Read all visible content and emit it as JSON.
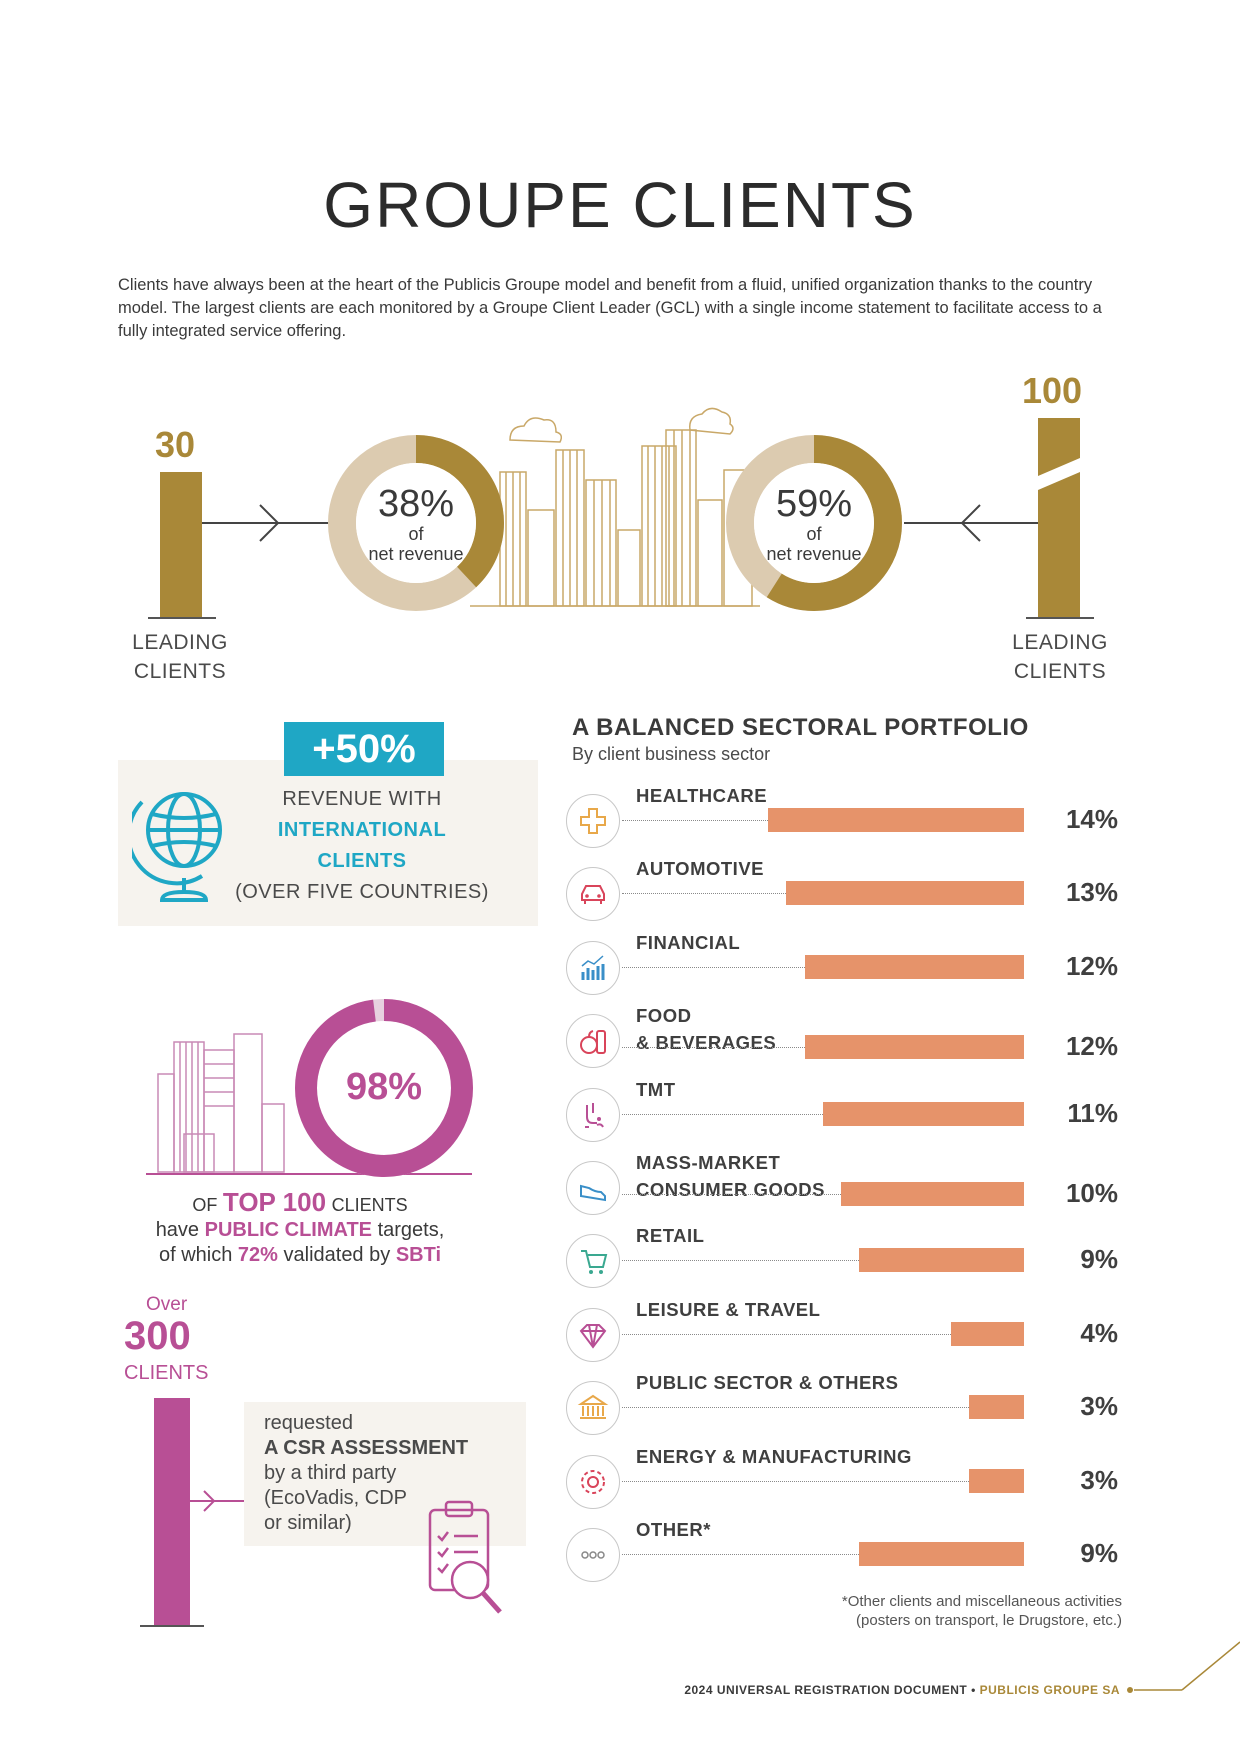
{
  "page": {
    "title": "GROUPE CLIENTS",
    "intro": "Clients have always been at the heart of the Publicis Groupe model and benefit from a fluid, unified organization thanks to the country model. The largest clients are each monitored by a Groupe Client Leader (GCL) with a single income statement to facilitate access to a fully integrated service offering."
  },
  "leading": {
    "left": {
      "count": "30",
      "label_line1": "LEADING",
      "label_line2": "CLIENTS",
      "pct": "38%",
      "of": "of",
      "sub": "net revenue",
      "share": 0.38
    },
    "right": {
      "count": "100",
      "label_line1": "LEADING",
      "label_line2": "CLIENTS",
      "pct": "59%",
      "of": "of",
      "sub": "net revenue",
      "share": 0.59
    }
  },
  "international": {
    "badge": "+50%",
    "line1": "REVENUE WITH",
    "line2": "INTERNATIONAL",
    "line3": "CLIENTS",
    "line4": "(OVER FIVE COUNTRIES)"
  },
  "climate": {
    "pct": "98%",
    "share": 0.98,
    "of": "OF",
    "top100": "TOP 100",
    "clients": "CLIENTS",
    "have": "have",
    "public_climate": "PUBLIC CLIMATE",
    "targets": "targets,",
    "of_which": "of which",
    "validated_pct": "72%",
    "validated_by": "validated by",
    "sbti": "SBTi"
  },
  "csr": {
    "over": "Over",
    "count": "300",
    "clients": "CLIENTS",
    "line1": "requested",
    "line2": "A CSR ASSESSMENT",
    "line3": "by a third party",
    "line4": "(EcoVadis, CDP",
    "line5": "or similar)"
  },
  "chart_data": {
    "type": "bar",
    "title": "A BALANCED SECTORAL PORTFOLIO",
    "subtitle": "By client business sector",
    "categories": [
      "HEALTHCARE",
      "AUTOMOTIVE",
      "FINANCIAL",
      "FOOD & BEVERAGES",
      "TMT",
      "MASS-MARKET CONSUMER GOODS",
      "RETAIL",
      "LEISURE & TRAVEL",
      "PUBLIC SECTOR & OTHERS",
      "ENERGY & MANUFACTURING",
      "OTHER*"
    ],
    "values": [
      14,
      13,
      12,
      12,
      11,
      10,
      9,
      4,
      3,
      3,
      9
    ],
    "labels": [
      "14%",
      "13%",
      "12%",
      "12%",
      "11%",
      "10%",
      "9%",
      "4%",
      "3%",
      "3%",
      "9%"
    ],
    "name_lines": [
      [
        "HEALTHCARE"
      ],
      [
        "AUTOMOTIVE"
      ],
      [
        "FINANCIAL"
      ],
      [
        "FOOD",
        "& BEVERAGES"
      ],
      [
        "TMT"
      ],
      [
        "MASS-MARKET",
        "CONSUMER GOODS"
      ],
      [
        "RETAIL"
      ],
      [
        "LEISURE & TRAVEL"
      ],
      [
        "PUBLIC SECTOR & OTHERS"
      ],
      [
        "ENERGY & MANUFACTURING"
      ],
      [
        "OTHER*"
      ]
    ],
    "icons": [
      "healthcare-icon",
      "car-icon",
      "chart-icon",
      "food-icon",
      "tmt-icon",
      "shoe-icon",
      "cart-icon",
      "diamond-icon",
      "building-icon",
      "gear-icon",
      "more-icon"
    ],
    "icon_colors": [
      "#e8a84a",
      "#d9445a",
      "#3a8fc8",
      "#d9445a",
      "#b84f95",
      "#3a8fc8",
      "#3aa890",
      "#b84f95",
      "#e8a84a",
      "#d9445a",
      "#888888"
    ],
    "bar_color": "#e6936a"
  },
  "footnote": {
    "line1": "*Other clients and miscellaneous activities",
    "line2": "(posters on transport, le Drugstore, etc.)"
  },
  "footer": {
    "doc": "2024 UNIVERSAL REGISTRATION DOCUMENT •",
    "company": "PUBLICIS GROUPE SA"
  },
  "colors": {
    "gold": "#a98838",
    "beige": "#dccbb0",
    "blue": "#1fa7c5",
    "magenta": "#b84f95",
    "orange": "#e6936a"
  }
}
